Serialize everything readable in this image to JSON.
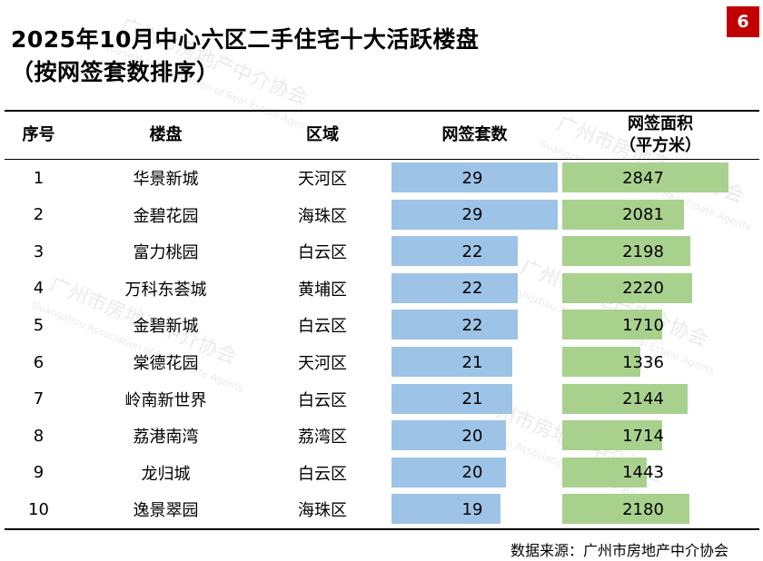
{
  "title_line1": "2025年10月中心六区二手住宅十大活跃楼盘",
  "title_line2": "（按网签套数排序）",
  "page_number": "6",
  "source": "数据来源：广州市房地产中介协会",
  "colors": {
    "count_bar": "#9dc3e6",
    "area_bar": "#a9d18e",
    "badge": "#c00000"
  },
  "chart_data": {
    "type": "table",
    "columns": [
      "序号",
      "楼盘",
      "区域",
      "网签套数",
      "网签面积（平方米）"
    ],
    "header": {
      "rank": "序号",
      "name": "楼盘",
      "district": "区域",
      "count": "网签套数",
      "area_line1": "网签面积",
      "area_line2": "（平方米）"
    },
    "rows": [
      {
        "rank": "1",
        "name": "华景新城",
        "district": "天河区",
        "count": 29,
        "area": 2847
      },
      {
        "rank": "2",
        "name": "金碧花园",
        "district": "海珠区",
        "count": 29,
        "area": 2081
      },
      {
        "rank": "3",
        "name": "富力桃园",
        "district": "白云区",
        "count": 22,
        "area": 2198
      },
      {
        "rank": "4",
        "name": "万科东荟城",
        "district": "黄埔区",
        "count": 22,
        "area": 2220
      },
      {
        "rank": "5",
        "name": "金碧新城",
        "district": "白云区",
        "count": 22,
        "area": 1710
      },
      {
        "rank": "6",
        "name": "棠德花园",
        "district": "天河区",
        "count": 21,
        "area": 1336
      },
      {
        "rank": "7",
        "name": "岭南新世界",
        "district": "白云区",
        "count": 21,
        "area": 2144
      },
      {
        "rank": "8",
        "name": "荔港南湾",
        "district": "荔湾区",
        "count": 20,
        "area": 1714
      },
      {
        "rank": "9",
        "name": "龙归城",
        "district": "白云区",
        "count": 20,
        "area": 1443
      },
      {
        "rank": "10",
        "name": "逸景翠园",
        "district": "海珠区",
        "count": 19,
        "area": 2180
      }
    ]
  },
  "watermark": {
    "text_cn": "广州市房地产中介协会",
    "text_en": "Guangzhou Association of Real Estate Agents"
  }
}
